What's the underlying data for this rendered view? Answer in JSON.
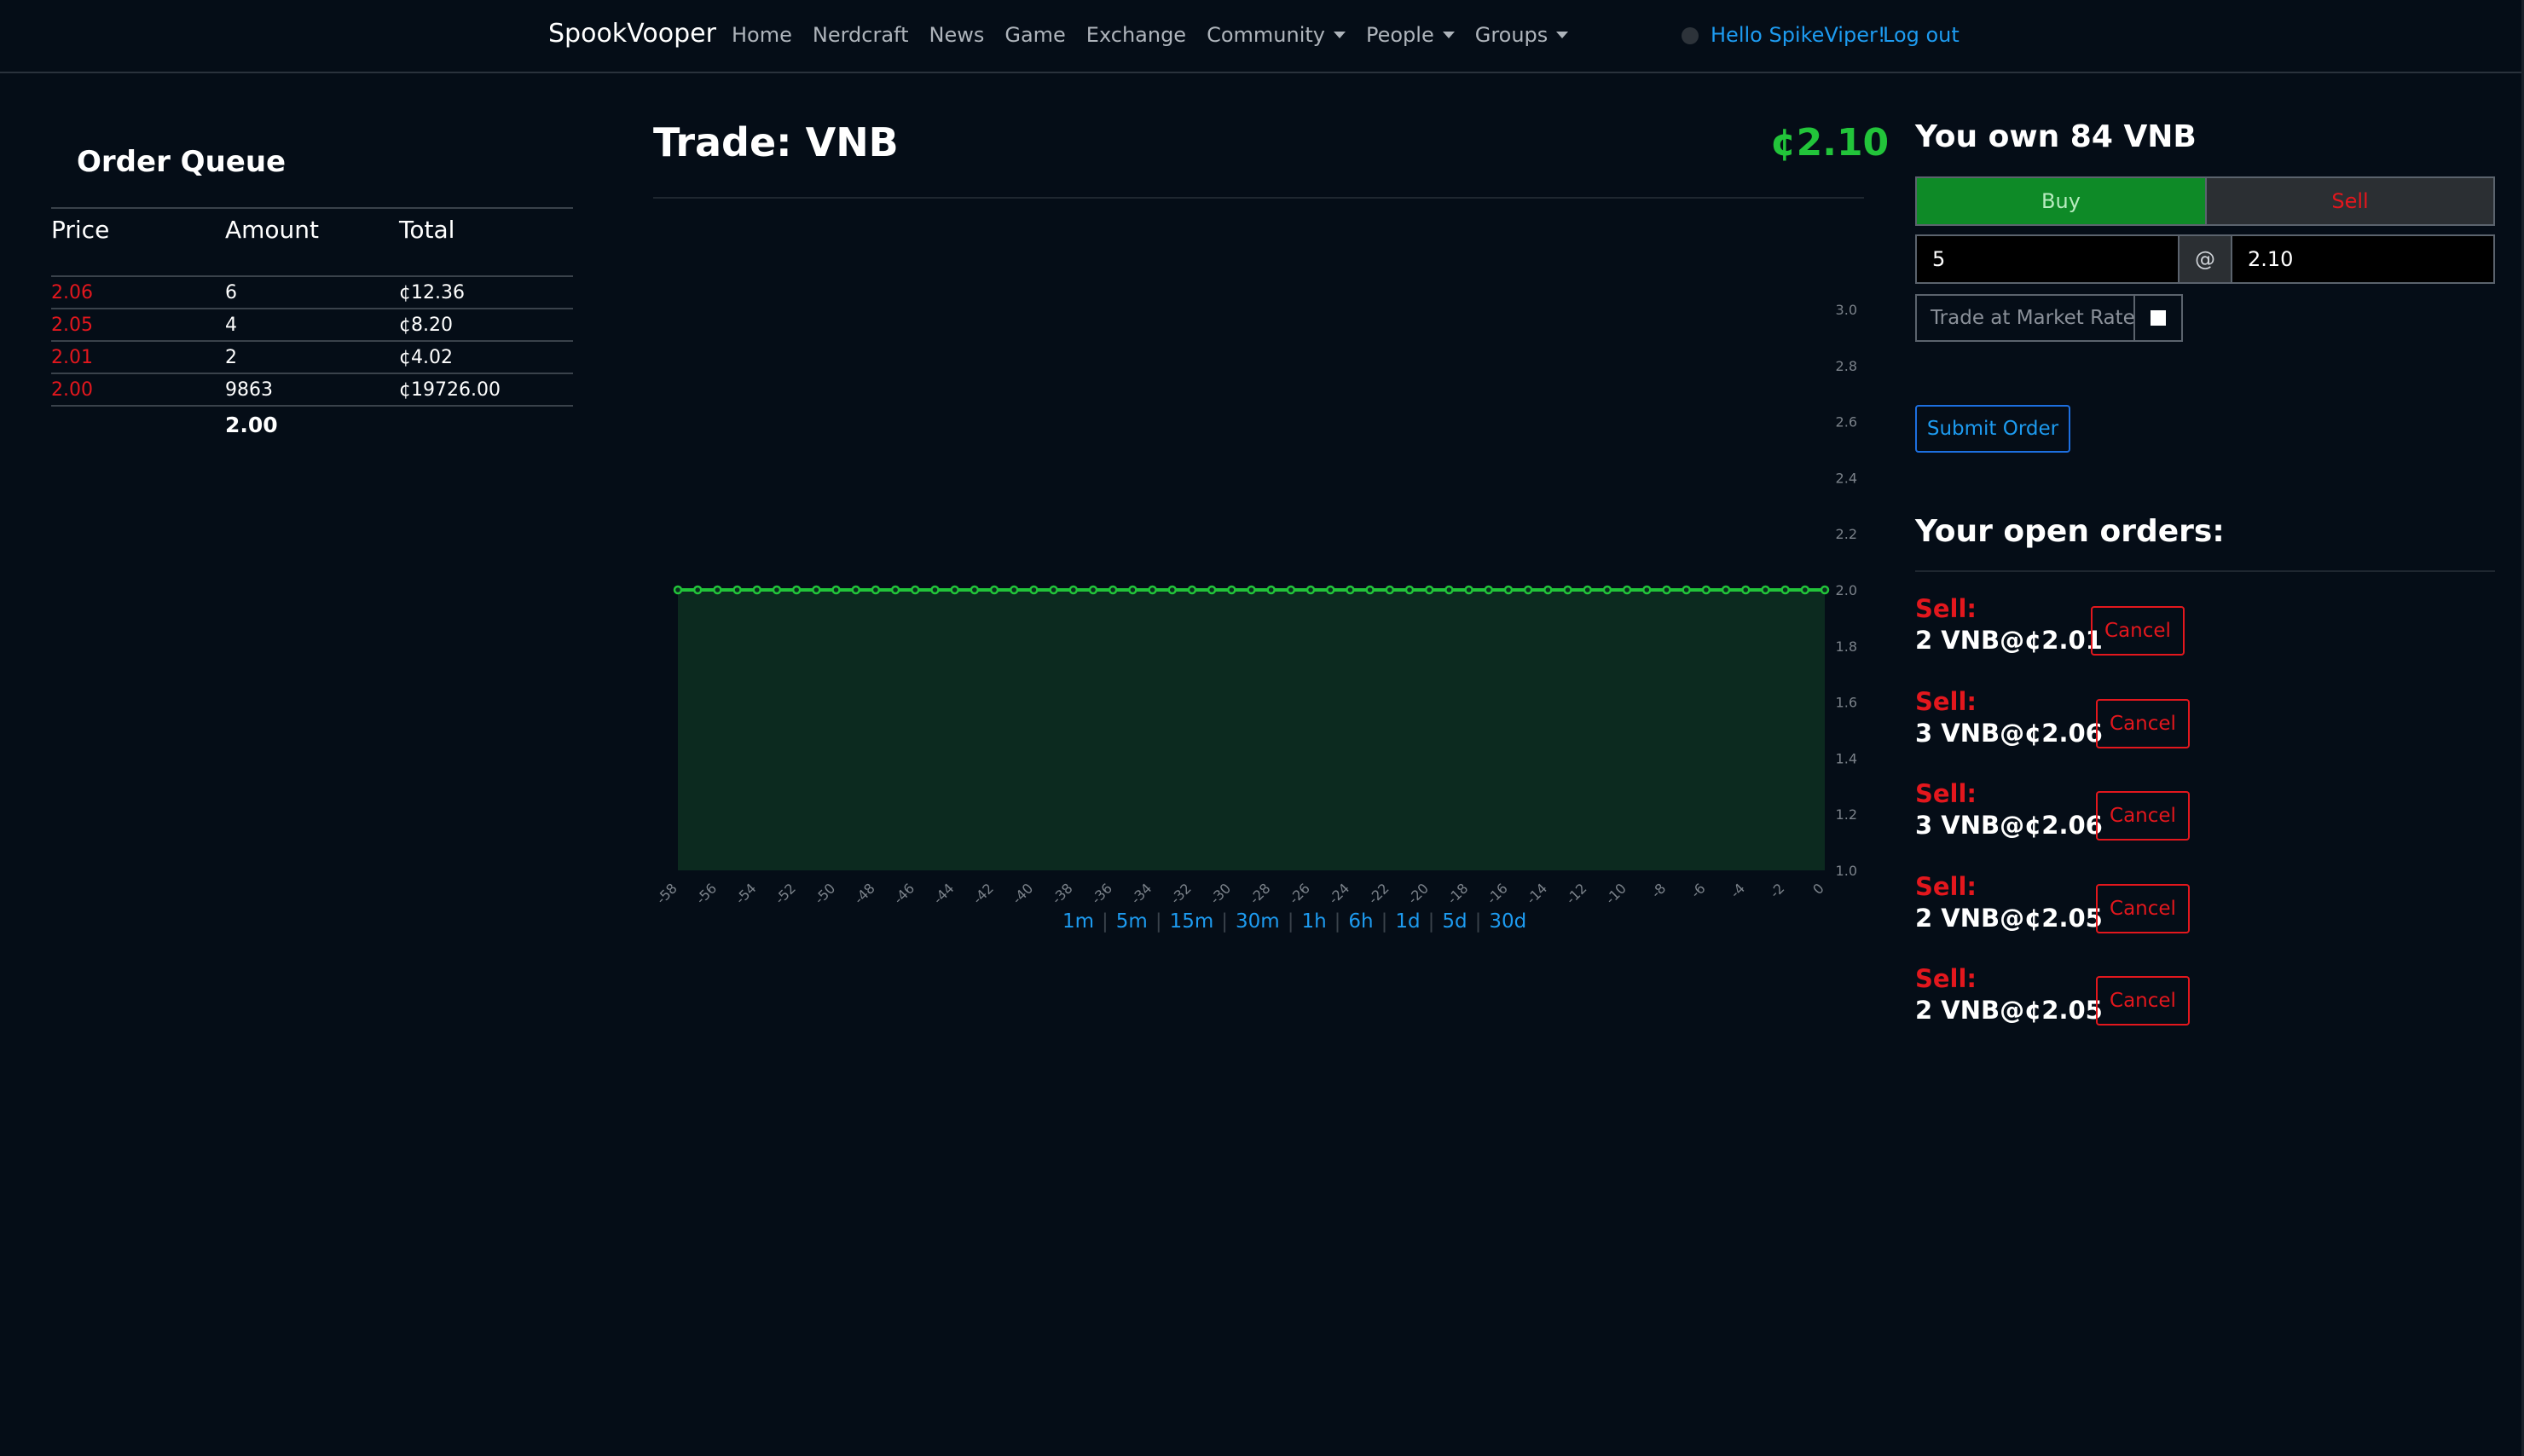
{
  "nav": {
    "brand": "SpookVooper",
    "links": [
      "Home",
      "Nerdcraft",
      "News",
      "Game",
      "Exchange"
    ],
    "dropdowns": [
      "Community",
      "People",
      "Groups"
    ],
    "hello": "Hello SpikeViper!",
    "logout": "Log out"
  },
  "order_queue": {
    "title": "Order Queue",
    "headers": [
      "Price",
      "Amount",
      "Total"
    ],
    "rows": [
      {
        "price": "2.06",
        "amount": "6",
        "total": "¢12.36"
      },
      {
        "price": "2.05",
        "amount": "4",
        "total": "¢8.20"
      },
      {
        "price": "2.01",
        "amount": "2",
        "total": "¢4.02"
      },
      {
        "price": "2.00",
        "amount": "9863",
        "total": "¢19726.00"
      }
    ],
    "footer": "2.00"
  },
  "trade": {
    "title": "Trade: VNB",
    "price": "¢2.10"
  },
  "colors": {
    "accent_green": "#22c43a",
    "sell_red": "#e3171d",
    "link_blue": "#1d9bf0",
    "chart_line": "#22c43a",
    "chart_fill": "#0c2a1f"
  },
  "chart_data": {
    "type": "area",
    "x": [
      -58,
      -57,
      -56,
      -55,
      -54,
      -53,
      -52,
      -51,
      -50,
      -49,
      -48,
      -47,
      -46,
      -45,
      -44,
      -43,
      -42,
      -41,
      -40,
      -39,
      -38,
      -37,
      -36,
      -35,
      -34,
      -33,
      -32,
      -31,
      -30,
      -29,
      -28,
      -27,
      -26,
      -25,
      -24,
      -23,
      -22,
      -21,
      -20,
      -19,
      -18,
      -17,
      -16,
      -15,
      -14,
      -13,
      -12,
      -11,
      -10,
      -9,
      -8,
      -7,
      -6,
      -5,
      -4,
      -3,
      -2,
      -1,
      0
    ],
    "values": [
      2.0,
      2.0,
      2.0,
      2.0,
      2.0,
      2.0,
      2.0,
      2.0,
      2.0,
      2.0,
      2.0,
      2.0,
      2.0,
      2.0,
      2.0,
      2.0,
      2.0,
      2.0,
      2.0,
      2.0,
      2.0,
      2.0,
      2.0,
      2.0,
      2.0,
      2.0,
      2.0,
      2.0,
      2.0,
      2.0,
      2.0,
      2.0,
      2.0,
      2.0,
      2.0,
      2.0,
      2.0,
      2.0,
      2.0,
      2.0,
      2.0,
      2.0,
      2.0,
      2.0,
      2.0,
      2.0,
      2.0,
      2.0,
      2.0,
      2.0,
      2.0,
      2.0,
      2.0,
      2.0,
      2.0,
      2.0,
      2.0,
      2.0,
      2.0
    ],
    "x_ticks": [
      "-58",
      "-56",
      "-54",
      "-52",
      "-50",
      "-48",
      "-46",
      "-44",
      "-42",
      "-40",
      "-38",
      "-36",
      "-34",
      "-32",
      "-30",
      "-28",
      "-26",
      "-24",
      "-22",
      "-20",
      "-18",
      "-16",
      "-14",
      "-12",
      "-10",
      "-8",
      "-6",
      "-4",
      "-2",
      "0"
    ],
    "y_ticks": [
      "3.0",
      "2.8",
      "2.6",
      "2.4",
      "2.2",
      "2.0",
      "1.8",
      "1.6",
      "1.4",
      "1.2",
      "1.0"
    ],
    "ylim": [
      1.0,
      3.0
    ],
    "xlim": [
      -58,
      0
    ],
    "grid": false
  },
  "ranges": [
    "1m",
    "5m",
    "15m",
    "30m",
    "1h",
    "6h",
    "1d",
    "5d",
    "30d"
  ],
  "panel": {
    "own_title": "You own 84 VNB",
    "buy_label": "Buy",
    "sell_label": "Sell",
    "quantity_value": "5",
    "at_label": "@",
    "rate_value": "2.10",
    "market_label": "Trade at Market Rate",
    "submit_label": "Submit Order",
    "open_orders_title": "Your open orders:"
  },
  "open_orders": [
    {
      "kind": "Sell:",
      "desc": "2 VNB@¢2.01",
      "cancel": "Cancel"
    },
    {
      "kind": "Sell:",
      "desc": "3 VNB@¢2.06",
      "cancel": "Cancel"
    },
    {
      "kind": "Sell:",
      "desc": "3 VNB@¢2.06",
      "cancel": "Cancel"
    },
    {
      "kind": "Sell:",
      "desc": "2 VNB@¢2.05",
      "cancel": "Cancel"
    },
    {
      "kind": "Sell:",
      "desc": "2 VNB@¢2.05",
      "cancel": "Cancel"
    }
  ]
}
